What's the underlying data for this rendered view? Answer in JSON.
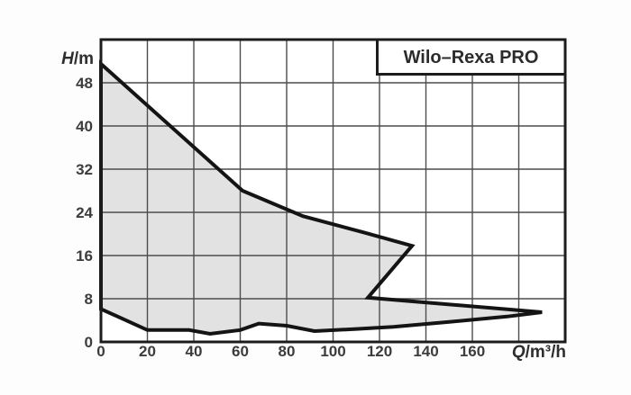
{
  "title_box": {
    "label": "Wilo–Rexa PRO"
  },
  "chart_data": {
    "type": "area",
    "title": "Wilo–Rexa PRO",
    "xlabel": "Q/m³/h",
    "ylabel": "H/m",
    "xlim": [
      0,
      200
    ],
    "ylim": [
      0,
      56
    ],
    "x_ticks": [
      0,
      20,
      40,
      60,
      80,
      100,
      120,
      140,
      160
    ],
    "y_ticks": [
      0,
      8,
      16,
      24,
      32,
      40,
      48
    ],
    "x_grid_step": 20,
    "y_grid_step": 8,
    "grid": true,
    "legend_position": "none",
    "axis_label_parts": {
      "y_italic": "H",
      "y_rest": "/m",
      "x_italic": "Q",
      "x_rest": "/m³/h"
    },
    "series": [
      {
        "name": "operating-envelope",
        "description": "closed pump operating range polygon, points as [Q m3/h, H m]",
        "points": [
          [
            0,
            51.5
          ],
          [
            61,
            28
          ],
          [
            87,
            23.3
          ],
          [
            113,
            20.3
          ],
          [
            134,
            17.8
          ],
          [
            115,
            8.2
          ],
          [
            190,
            5.5
          ],
          [
            175,
            4.7
          ],
          [
            150,
            3.7
          ],
          [
            126,
            2.8
          ],
          [
            110,
            2.4
          ],
          [
            92,
            2.0
          ],
          [
            80,
            3.0
          ],
          [
            68,
            3.4
          ],
          [
            60,
            2.2
          ],
          [
            47,
            1.5
          ],
          [
            38,
            2.2
          ],
          [
            20,
            2.2
          ],
          [
            0,
            6.1
          ]
        ]
      }
    ],
    "colors": {
      "envelope_fill": "#e2e2e2",
      "envelope_outline": "#141414",
      "grid_line": "#4d4d4d",
      "plot_border": "#1c1c1c",
      "plot_background": "#ffffff",
      "page_background": "#fdfdfd",
      "label_text": "#3c3c3c"
    }
  }
}
